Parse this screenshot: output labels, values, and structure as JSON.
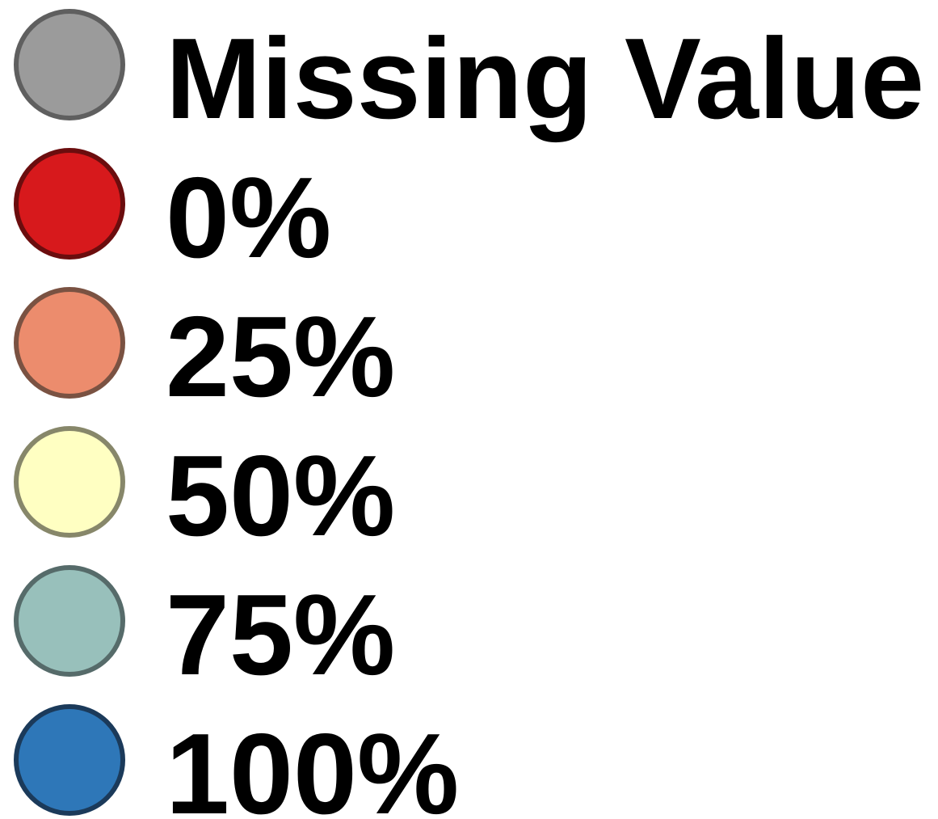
{
  "legend": {
    "items": [
      {
        "label": "Missing Value",
        "fill": "#9b9b9b",
        "stroke": "#5f5f5f"
      },
      {
        "label": "0%",
        "fill": "#d7191c",
        "stroke": "#6b0d0e"
      },
      {
        "label": "25%",
        "fill": "#ec8c6d",
        "stroke": "#7a5242"
      },
      {
        "label": "50%",
        "fill": "#ffffc2",
        "stroke": "#87876a"
      },
      {
        "label": "75%",
        "fill": "#98c0bb",
        "stroke": "#566b6a"
      },
      {
        "label": "100%",
        "fill": "#2e77b8",
        "stroke": "#1b3a5a"
      }
    ]
  }
}
